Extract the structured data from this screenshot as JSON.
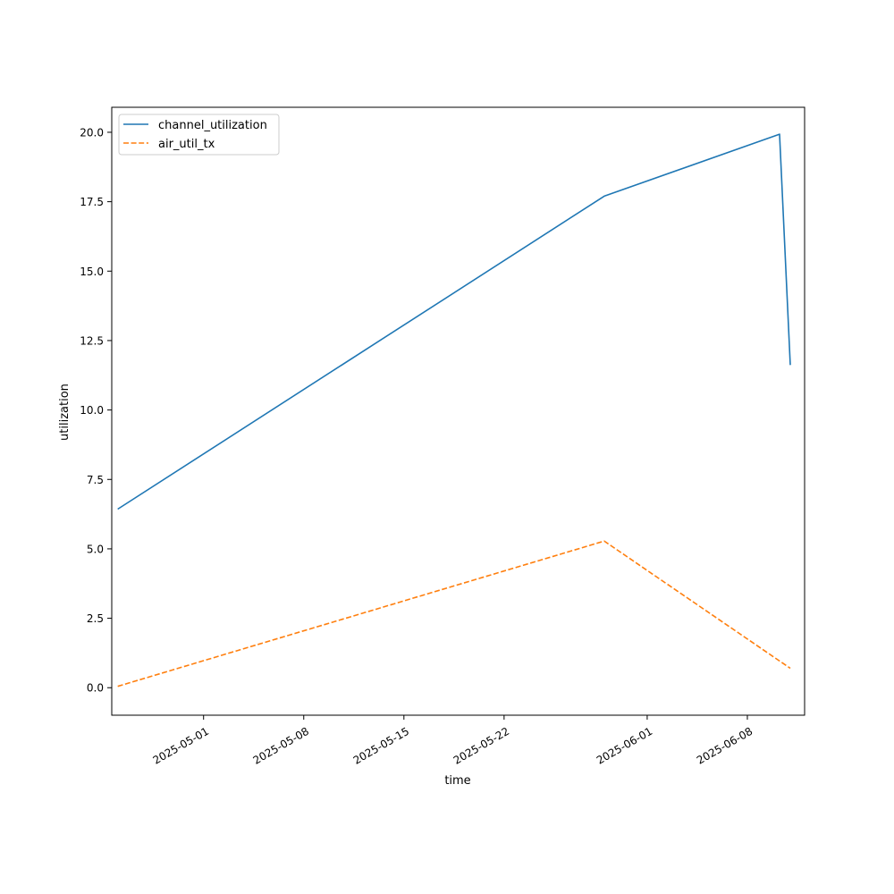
{
  "chart_data": {
    "type": "line",
    "title": "",
    "xlabel": "time",
    "ylabel": "utilization",
    "x_axis_kind": "date",
    "xlim": [
      "2025-04-24T14:00",
      "2025-06-12T00:00"
    ],
    "ylim": [
      -0.99,
      20.9
    ],
    "x_ticks": [
      "2025-05-01",
      "2025-05-08",
      "2025-05-15",
      "2025-05-22",
      "2025-06-01",
      "2025-06-08"
    ],
    "y_ticks": [
      0.0,
      2.5,
      5.0,
      7.5,
      10.0,
      12.5,
      15.0,
      17.5,
      20.0
    ],
    "grid": false,
    "legend_position": "top-left",
    "series": [
      {
        "name": "channel_utilization",
        "color": "#1f77b4",
        "line_style": "solid",
        "points": [
          {
            "x": "2025-04-25T00:00",
            "y": 6.43
          },
          {
            "x": "2025-05-29T00:00",
            "y": 17.7
          },
          {
            "x": "2025-06-10T06:00",
            "y": 19.93
          },
          {
            "x": "2025-06-11T00:00",
            "y": 11.62
          }
        ]
      },
      {
        "name": "air_util_tx",
        "color": "#ff7f0e",
        "line_style": "dashed",
        "points": [
          {
            "x": "2025-04-25T00:00",
            "y": 0.05
          },
          {
            "x": "2025-05-29T00:00",
            "y": 5.28
          },
          {
            "x": "2025-06-10T00:00",
            "y": 1.05
          },
          {
            "x": "2025-06-11T00:00",
            "y": 0.7
          }
        ]
      }
    ]
  }
}
